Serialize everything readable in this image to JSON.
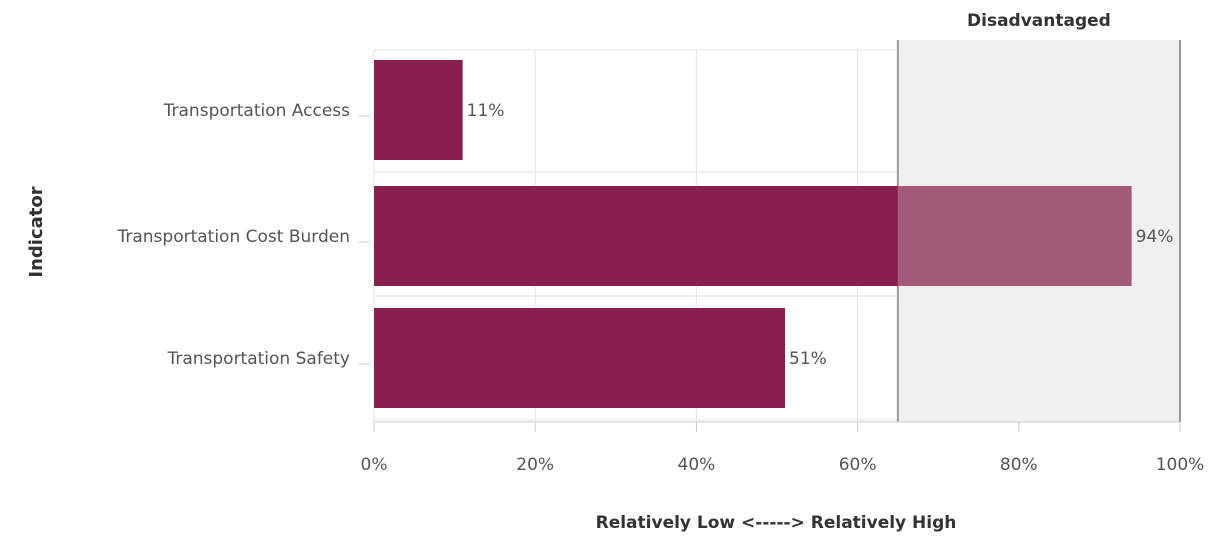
{
  "chart_data": {
    "type": "bar",
    "orientation": "horizontal",
    "categories": [
      "Transportation Access",
      "Transportation Cost Burden",
      "Transportation Safety"
    ],
    "values": [
      11,
      94,
      51
    ],
    "value_labels": [
      "11%",
      "94%",
      "51%"
    ],
    "xlabel": "Relatively Low <-----> Relatively High",
    "ylabel": "Indicator",
    "xlim": [
      0,
      100
    ],
    "xticks": [
      0,
      20,
      40,
      60,
      80,
      100
    ],
    "xtick_labels": [
      "0%",
      "20%",
      "40%",
      "60%",
      "80%",
      "100%"
    ],
    "grid": true,
    "threshold": {
      "value": 65,
      "label": "Disadvantaged",
      "range": [
        65,
        100
      ]
    },
    "colors": {
      "bar": "#88204f",
      "bar_in_zone": "#a35a7a",
      "zone_fill": "#f0f0f0",
      "zone_line": "#999999",
      "grid": "#e3e3e3"
    }
  }
}
